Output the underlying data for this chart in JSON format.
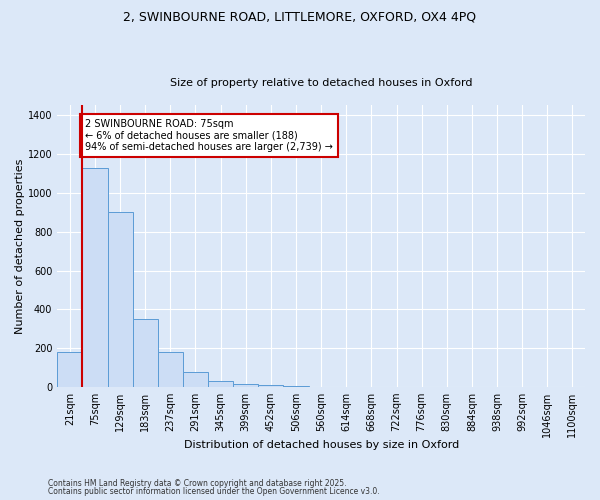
{
  "title_line1": "2, SWINBOURNE ROAD, LITTLEMORE, OXFORD, OX4 4PQ",
  "title_line2": "Size of property relative to detached houses in Oxford",
  "xlabel": "Distribution of detached houses by size in Oxford",
  "ylabel": "Number of detached properties",
  "categories": [
    "21sqm",
    "75sqm",
    "129sqm",
    "183sqm",
    "237sqm",
    "291sqm",
    "345sqm",
    "399sqm",
    "452sqm",
    "506sqm",
    "560sqm",
    "614sqm",
    "668sqm",
    "722sqm",
    "776sqm",
    "830sqm",
    "884sqm",
    "938sqm",
    "992sqm",
    "1046sqm",
    "1100sqm"
  ],
  "values": [
    180,
    1130,
    900,
    350,
    180,
    80,
    30,
    15,
    10,
    5,
    0,
    0,
    0,
    0,
    0,
    0,
    0,
    0,
    0,
    0,
    0
  ],
  "bar_color": "#ccddf5",
  "bar_edge_color": "#5b9bd5",
  "red_line_index": 1,
  "annotation_text": "2 SWINBOURNE ROAD: 75sqm\n← 6% of detached houses are smaller (188)\n94% of semi-detached houses are larger (2,739) →",
  "annotation_box_facecolor": "#ffffff",
  "annotation_box_edgecolor": "#cc0000",
  "red_line_color": "#cc0000",
  "ylim": [
    0,
    1450
  ],
  "yticks": [
    0,
    200,
    400,
    600,
    800,
    1000,
    1200,
    1400
  ],
  "footnote1": "Contains HM Land Registry data © Crown copyright and database right 2025.",
  "footnote2": "Contains public sector information licensed under the Open Government Licence v3.0.",
  "background_color": "#dce8f8",
  "plot_bg_color": "#dce8f8",
  "grid_color": "#ffffff",
  "title_fontsize": 9,
  "subtitle_fontsize": 8,
  "axis_label_fontsize": 8,
  "tick_fontsize": 7,
  "annotation_fontsize": 7,
  "footnote_fontsize": 5.5
}
